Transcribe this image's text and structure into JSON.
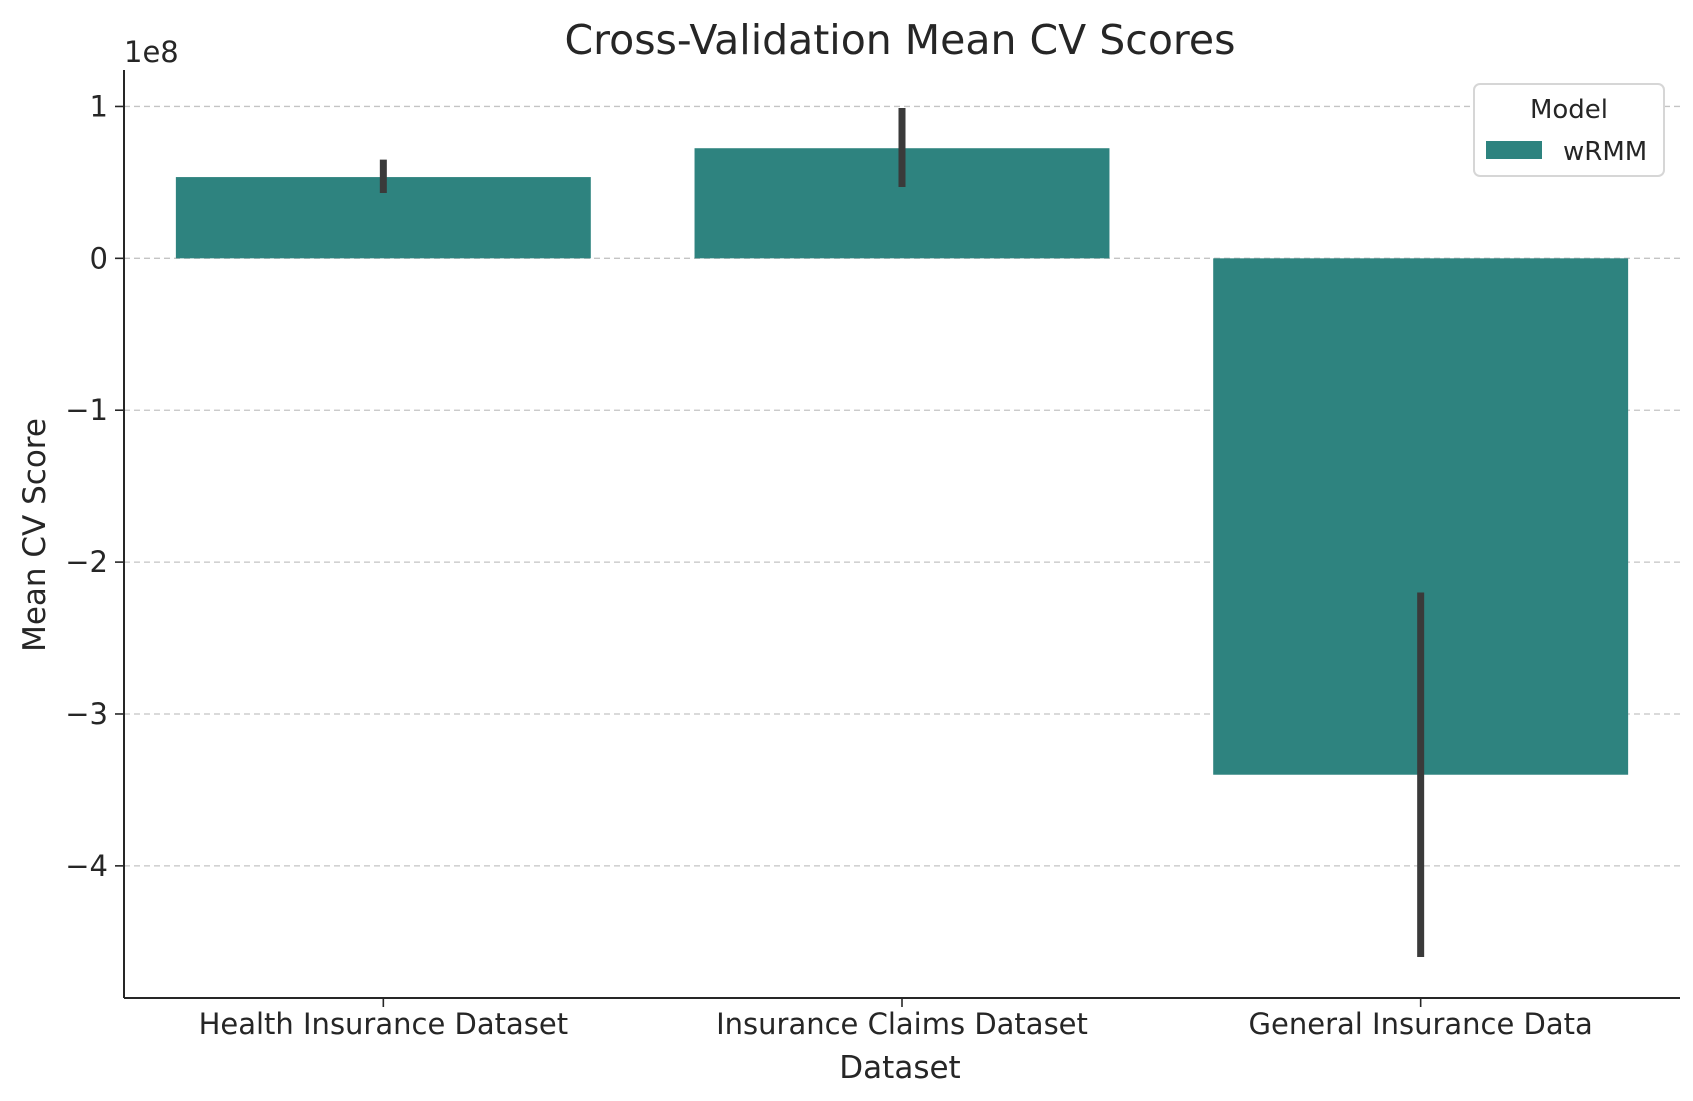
{
  "chart_data": {
    "type": "bar",
    "title": "Cross-Validation Mean CV Scores",
    "xlabel": "Dataset",
    "ylabel": "Mean CV Score",
    "offset_label": "1e8",
    "scale": 100000000,
    "categories": [
      "Health Insurance Dataset",
      "Insurance Claims Dataset",
      "General Insurance Data"
    ],
    "series": [
      {
        "name": "wRMM",
        "values": [
          53500000,
          72500000,
          -340000000
        ],
        "error_low": [
          43000000,
          47000000,
          -460000000
        ],
        "error_high": [
          65000000,
          99000000,
          -220000000
        ]
      }
    ],
    "ylim": [
      -487000000,
      124000000
    ],
    "yticks": [
      1,
      0,
      -1,
      -2,
      -3,
      -4
    ],
    "ytick_labels": [
      "1",
      "0",
      "−1",
      "−2",
      "−3",
      "−4"
    ],
    "grid": "y-dashed",
    "legend": {
      "title": "Model",
      "placement": "top-right"
    },
    "colors": {
      "bar": "#2e837f",
      "error": "#3a3a3a",
      "grid": "#c4c4c4",
      "axis": "#262626"
    }
  }
}
